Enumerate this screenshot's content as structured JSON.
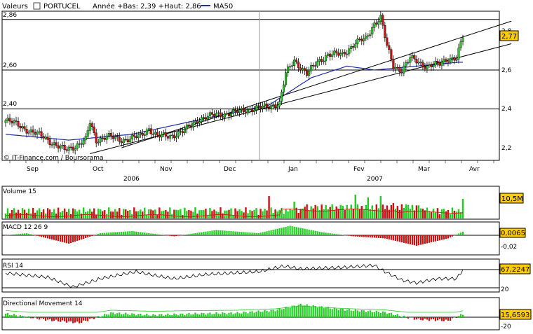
{
  "header": {
    "valeurs_label": "Valeurs",
    "symbol": "PORTUCEL",
    "range_text": "Année +Bas: 2,39 +Haut: 2,86",
    "ma_legend": "MA50"
  },
  "colors": {
    "up": "#22cc22",
    "down": "#cc1111",
    "ma": "#1a2aa8",
    "trend": "#000000",
    "last_box": "#ffcc00"
  },
  "price_panel": {
    "level_labels": [
      "2,86",
      "2,60",
      "2,40"
    ],
    "right_ticks": [
      "2,8",
      "2,6",
      "2,4",
      "2,2"
    ],
    "last_value": "2,77",
    "copyright": "© IT-Finance.com / Boursorama",
    "months": [
      "Sep",
      "Oct",
      "Nov",
      "Dec",
      "Jan",
      "Fev",
      "Mar",
      "Avr"
    ],
    "years": [
      "2006",
      "2007"
    ]
  },
  "volume_panel": {
    "title": "Volume 15",
    "last_value": "10,5M"
  },
  "macd_panel": {
    "title": "MACD 12 26 9",
    "last_value": "0,0065",
    "right_tick": "-0,02"
  },
  "rsi_panel": {
    "title": "RSI 14",
    "last_value": "67,2247",
    "right_tick": "20"
  },
  "dm_panel": {
    "title": "Directional Movement 14",
    "last_value": "15,6593",
    "right_tick": "-20"
  },
  "chart_data": {
    "type": "candlestick",
    "symbol": "PORTUCEL",
    "period": "Sep 2006 – Mar 2007",
    "ylim": [
      2.15,
      2.9
    ],
    "reference_levels": [
      2.86,
      2.6,
      2.4
    ],
    "right_ticks": [
      2.8,
      2.6,
      2.4,
      2.2
    ],
    "last_close": 2.77,
    "ma_period": 50,
    "ma50_anchors": [
      [
        0,
        2.27
      ],
      [
        30,
        2.24
      ],
      [
        60,
        2.27
      ],
      [
        90,
        2.34
      ],
      [
        125,
        2.42
      ],
      [
        145,
        2.56
      ],
      [
        162,
        2.62
      ],
      [
        175,
        2.6
      ],
      [
        195,
        2.62
      ],
      [
        215,
        2.64
      ]
    ],
    "trendlines": [
      [
        [
          55,
          2.2
        ],
        [
          217,
          2.77
        ]
      ],
      [
        [
          40,
          2.17
        ],
        [
          217,
          2.67
        ]
      ]
    ],
    "price_anchors": [
      [
        0,
        2.34
      ],
      [
        6,
        2.32
      ],
      [
        12,
        2.28
      ],
      [
        18,
        2.26
      ],
      [
        24,
        2.21
      ],
      [
        28,
        2.19
      ],
      [
        33,
        2.21
      ],
      [
        38,
        2.24
      ],
      [
        40,
        2.33
      ],
      [
        43,
        2.24
      ],
      [
        48,
        2.26
      ],
      [
        55,
        2.24
      ],
      [
        64,
        2.26
      ],
      [
        68,
        2.3
      ],
      [
        72,
        2.26
      ],
      [
        78,
        2.26
      ],
      [
        85,
        2.29
      ],
      [
        92,
        2.35
      ],
      [
        100,
        2.37
      ],
      [
        108,
        2.38
      ],
      [
        116,
        2.4
      ],
      [
        124,
        2.41
      ],
      [
        130,
        2.43
      ],
      [
        133,
        2.58
      ],
      [
        137,
        2.65
      ],
      [
        143,
        2.58
      ],
      [
        148,
        2.64
      ],
      [
        153,
        2.68
      ],
      [
        160,
        2.68
      ],
      [
        166,
        2.74
      ],
      [
        171,
        2.76
      ],
      [
        175,
        2.84
      ],
      [
        178,
        2.87
      ],
      [
        181,
        2.72
      ],
      [
        184,
        2.62
      ],
      [
        188,
        2.6
      ],
      [
        192,
        2.66
      ],
      [
        196,
        2.64
      ],
      [
        200,
        2.62
      ],
      [
        206,
        2.63
      ],
      [
        210,
        2.66
      ],
      [
        214,
        2.66
      ],
      [
        217,
        2.77
      ]
    ],
    "volume": {
      "period": 15,
      "last": "10,5M"
    },
    "macd": {
      "params": [
        12,
        26,
        9
      ],
      "last": 0.0065,
      "ticks": [
        -0.02
      ]
    },
    "rsi": {
      "period": 14,
      "last": 67.2247,
      "ticks": [
        20
      ]
    },
    "directional_movement": {
      "period": 14,
      "last": 15.6593,
      "ticks": [
        -20
      ]
    }
  }
}
